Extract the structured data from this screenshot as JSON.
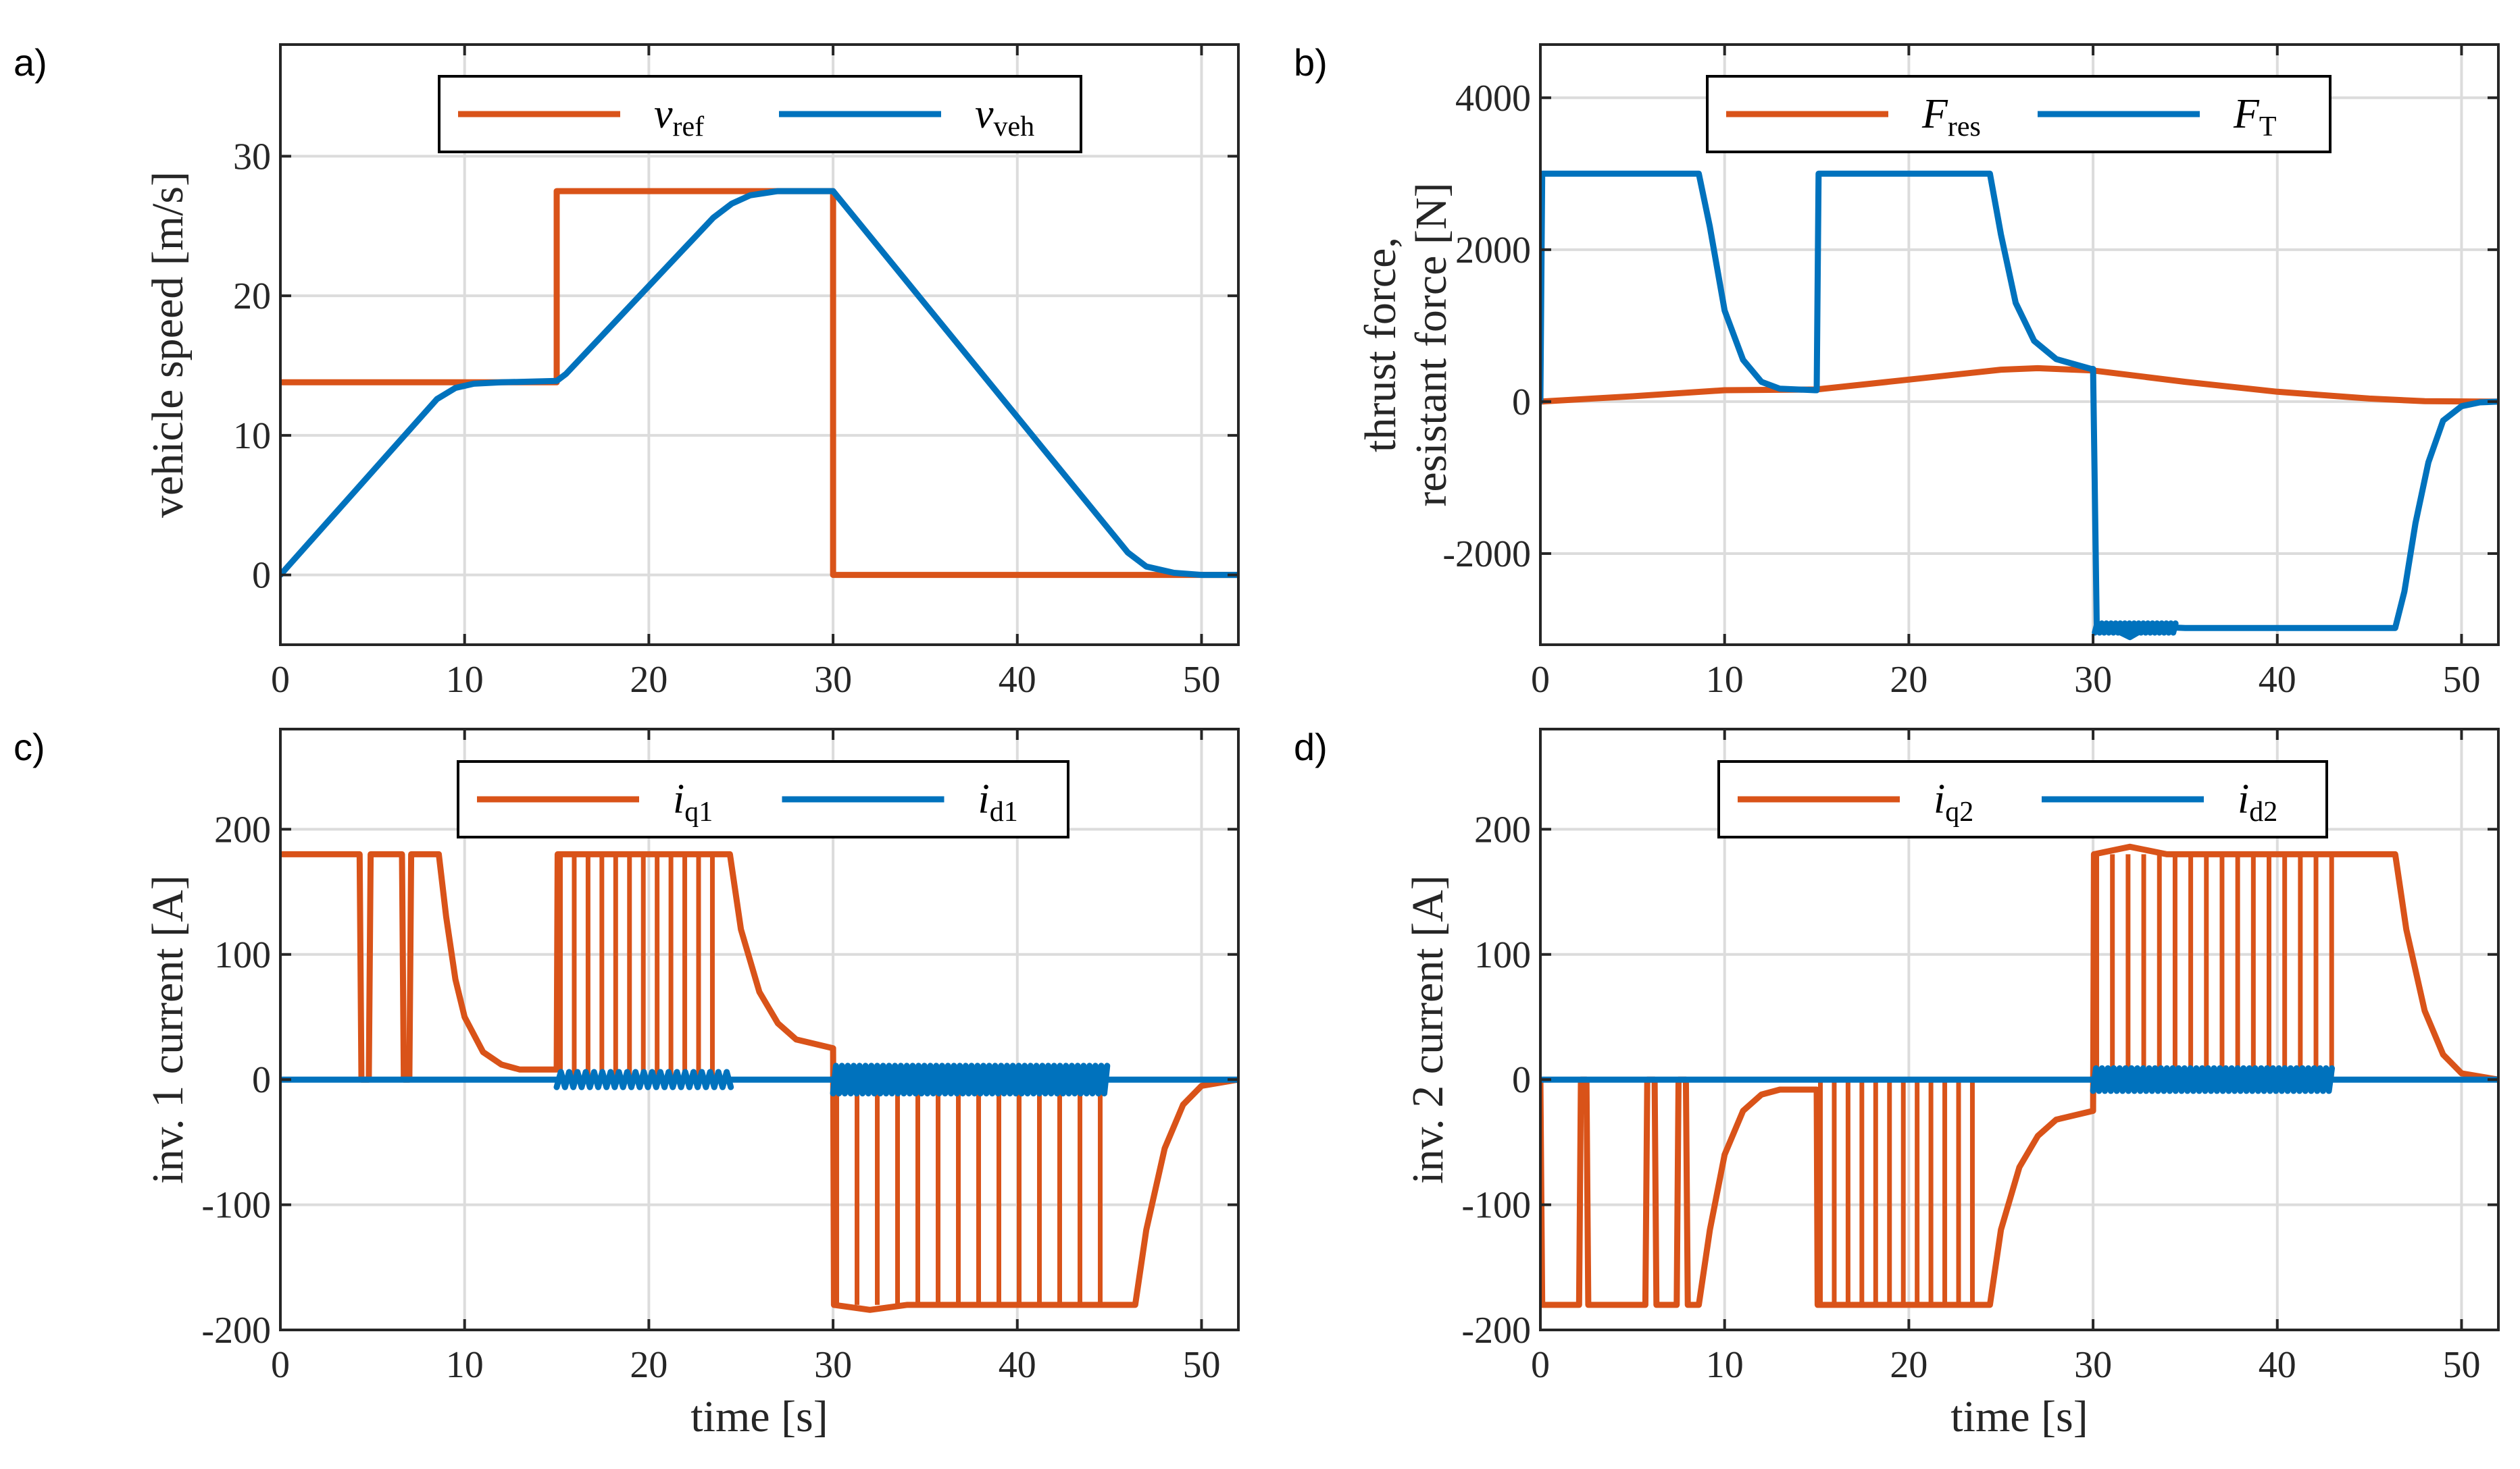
{
  "colors": {
    "orange": "#D95319",
    "blue": "#0072BD",
    "grid": "#dcdcdc",
    "axis": "#262626"
  },
  "chart_data": [
    {
      "panel": "a)",
      "type": "line",
      "xlabel": "",
      "ylabel": "vehicle speed [m/s]",
      "xlim": [
        0,
        52
      ],
      "ylim": [
        -5,
        38
      ],
      "xticks": [
        0,
        10,
        20,
        30,
        40,
        50
      ],
      "yticks": [
        0,
        10,
        20,
        30
      ],
      "xtick_labels": [
        "0",
        "10",
        "20",
        "30",
        "40",
        "50"
      ],
      "ytick_labels": [
        "0",
        "10",
        "20",
        "30"
      ],
      "grid": true,
      "legend_position": "top-center",
      "series": [
        {
          "name": "v",
          "sub": "ref",
          "color": "#D95319",
          "x": [
            0,
            15,
            15,
            30,
            30,
            52
          ],
          "y": [
            13.8,
            13.8,
            27.5,
            27.5,
            0,
            0
          ]
        },
        {
          "name": "v",
          "sub": "veh",
          "color": "#0072BD",
          "x": [
            0,
            8.5,
            9.5,
            10.5,
            12,
            15,
            15.5,
            23.5,
            24.5,
            25.5,
            27,
            30,
            46,
            47,
            48.5,
            50,
            52
          ],
          "y": [
            0,
            12.6,
            13.4,
            13.7,
            13.8,
            13.9,
            14.4,
            25.6,
            26.6,
            27.2,
            27.5,
            27.5,
            1.6,
            0.6,
            0.15,
            0,
            0
          ]
        }
      ]
    },
    {
      "panel": "b)",
      "type": "line",
      "xlabel": "",
      "ylabel": "thrust force,",
      "ylabel2": "resistant force [N]",
      "xlim": [
        0,
        52
      ],
      "ylim": [
        -3200,
        4700
      ],
      "xticks": [
        0,
        10,
        20,
        30,
        40,
        50
      ],
      "yticks": [
        -2000,
        0,
        2000,
        4000
      ],
      "xtick_labels": [
        "0",
        "10",
        "20",
        "30",
        "40",
        "50"
      ],
      "ytick_labels": [
        "-2000",
        "0",
        "2000",
        "4000"
      ],
      "grid": true,
      "legend_position": "top-center",
      "series": [
        {
          "name": "F",
          "sub": "res",
          "color": "#D95319",
          "x": [
            0,
            5,
            10,
            15,
            20,
            25,
            27,
            30,
            35,
            40,
            45,
            48,
            52
          ],
          "y": [
            0,
            70,
            150,
            160,
            290,
            420,
            440,
            410,
            260,
            130,
            40,
            5,
            0
          ]
        },
        {
          "name": "F",
          "sub": "T",
          "color": "#0072BD",
          "x": [
            0,
            0.1,
            8.6,
            9.2,
            10,
            11,
            12,
            13,
            14.9,
            15.0,
            15.1,
            24.4,
            25,
            25.8,
            26.8,
            28,
            29.9,
            30.0,
            30.2,
            31,
            32,
            33,
            35,
            46.4,
            46.9,
            47.5,
            48.2,
            49,
            50,
            51,
            52
          ],
          "y": [
            0,
            3000,
            3000,
            2300,
            1200,
            550,
            260,
            170,
            150,
            150,
            3000,
            3000,
            2200,
            1300,
            800,
            560,
            430,
            430,
            -2950,
            -2980,
            -3100,
            -2960,
            -2980,
            -2980,
            -2500,
            -1600,
            -800,
            -250,
            -60,
            -10,
            0
          ]
        }
      ]
    },
    {
      "panel": "c)",
      "type": "line",
      "xlabel": "time [s]",
      "ylabel": "inv. 1 current [A]",
      "xlim": [
        0,
        52
      ],
      "ylim": [
        -200,
        280
      ],
      "xticks": [
        0,
        10,
        20,
        30,
        40,
        50
      ],
      "yticks": [
        -200,
        -100,
        0,
        100,
        200
      ],
      "xtick_labels": [
        "0",
        "10",
        "20",
        "30",
        "40",
        "50"
      ],
      "ytick_labels": [
        "-200",
        "-100",
        "0",
        "100",
        "200"
      ],
      "grid": true,
      "legend_position": "top-center",
      "series": [
        {
          "name": "i",
          "sub": "q1",
          "color": "#D95319",
          "x": [
            0,
            4.3,
            4.4,
            4.8,
            4.9,
            6.6,
            6.7,
            7.0,
            7.1,
            8.6,
            9.0,
            9.5,
            10,
            11,
            12,
            13,
            15,
            15.05,
            24.4,
            25,
            26,
            27,
            28,
            30,
            30.05,
            32,
            34,
            46.4,
            47,
            48,
            49,
            50,
            52
          ],
          "y": [
            180,
            180,
            0,
            0,
            180,
            180,
            0,
            0,
            180,
            180,
            130,
            80,
            50,
            22,
            12,
            8,
            8,
            180,
            180,
            120,
            70,
            45,
            32,
            25,
            -180,
            -184,
            -180,
            -180,
            -120,
            -55,
            -20,
            -5,
            0
          ]
        },
        {
          "name": "i",
          "sub": "d1",
          "color": "#0072BD",
          "x": [
            0,
            52
          ],
          "y": [
            0,
            0
          ]
        }
      ]
    },
    {
      "panel": "d)",
      "type": "line",
      "xlabel": "time [s]",
      "ylabel": "inv. 2 current [A]",
      "xlim": [
        0,
        52
      ],
      "ylim": [
        -200,
        280
      ],
      "xticks": [
        0,
        10,
        20,
        30,
        40,
        50
      ],
      "yticks": [
        -200,
        -100,
        0,
        100,
        200
      ],
      "xtick_labels": [
        "0",
        "10",
        "20",
        "30",
        "40",
        "50"
      ],
      "ytick_labels": [
        "-200",
        "-100",
        "0",
        "100",
        "200"
      ],
      "grid": true,
      "legend_position": "top-center",
      "series": [
        {
          "name": "i",
          "sub": "q2",
          "color": "#D95319",
          "x": [
            0,
            0.1,
            2.1,
            2.2,
            2.5,
            2.6,
            5.7,
            5.8,
            6.2,
            6.3,
            7.4,
            7.5,
            7.9,
            8.0,
            8.6,
            9.2,
            10,
            11,
            12,
            13,
            15,
            15.05,
            24.4,
            25,
            26,
            27,
            28,
            30,
            30.05,
            32,
            34,
            46.4,
            47,
            48,
            49,
            50,
            52
          ],
          "y": [
            0,
            -180,
            -180,
            0,
            0,
            -180,
            -180,
            0,
            0,
            -180,
            -180,
            0,
            0,
            -180,
            -180,
            -120,
            -60,
            -25,
            -12,
            -8,
            -8,
            -180,
            -180,
            -120,
            -70,
            -45,
            -32,
            -25,
            180,
            186,
            180,
            180,
            120,
            55,
            20,
            5,
            0
          ]
        },
        {
          "name": "i",
          "sub": "d2",
          "color": "#0072BD",
          "x": [
            0,
            52
          ],
          "y": [
            0,
            0
          ]
        }
      ]
    }
  ]
}
